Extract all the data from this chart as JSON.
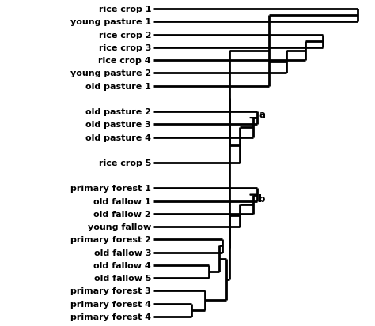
{
  "labels": [
    "rice crop 1",
    "young pasture 1",
    "rice crop 2",
    "rice crop 3",
    "rice crop 4",
    "young pasture 2",
    "old pasture 1",
    "",
    "old pasture 2",
    "old pasture 3",
    "old pasture 4",
    "",
    "rice crop 5",
    "",
    "primary forest 1",
    "old fallow 1",
    "old fallow 2",
    "young fallow",
    "primary forest 2",
    "old fallow 3",
    "old fallow 4",
    "old fallow 5",
    "primary forest 3",
    "primary forest 4",
    "primary forest 4"
  ],
  "lw": 2.0,
  "label_fontsize": 8.0,
  "circle_r": 0.35,
  "note_fontsize": 8.5
}
